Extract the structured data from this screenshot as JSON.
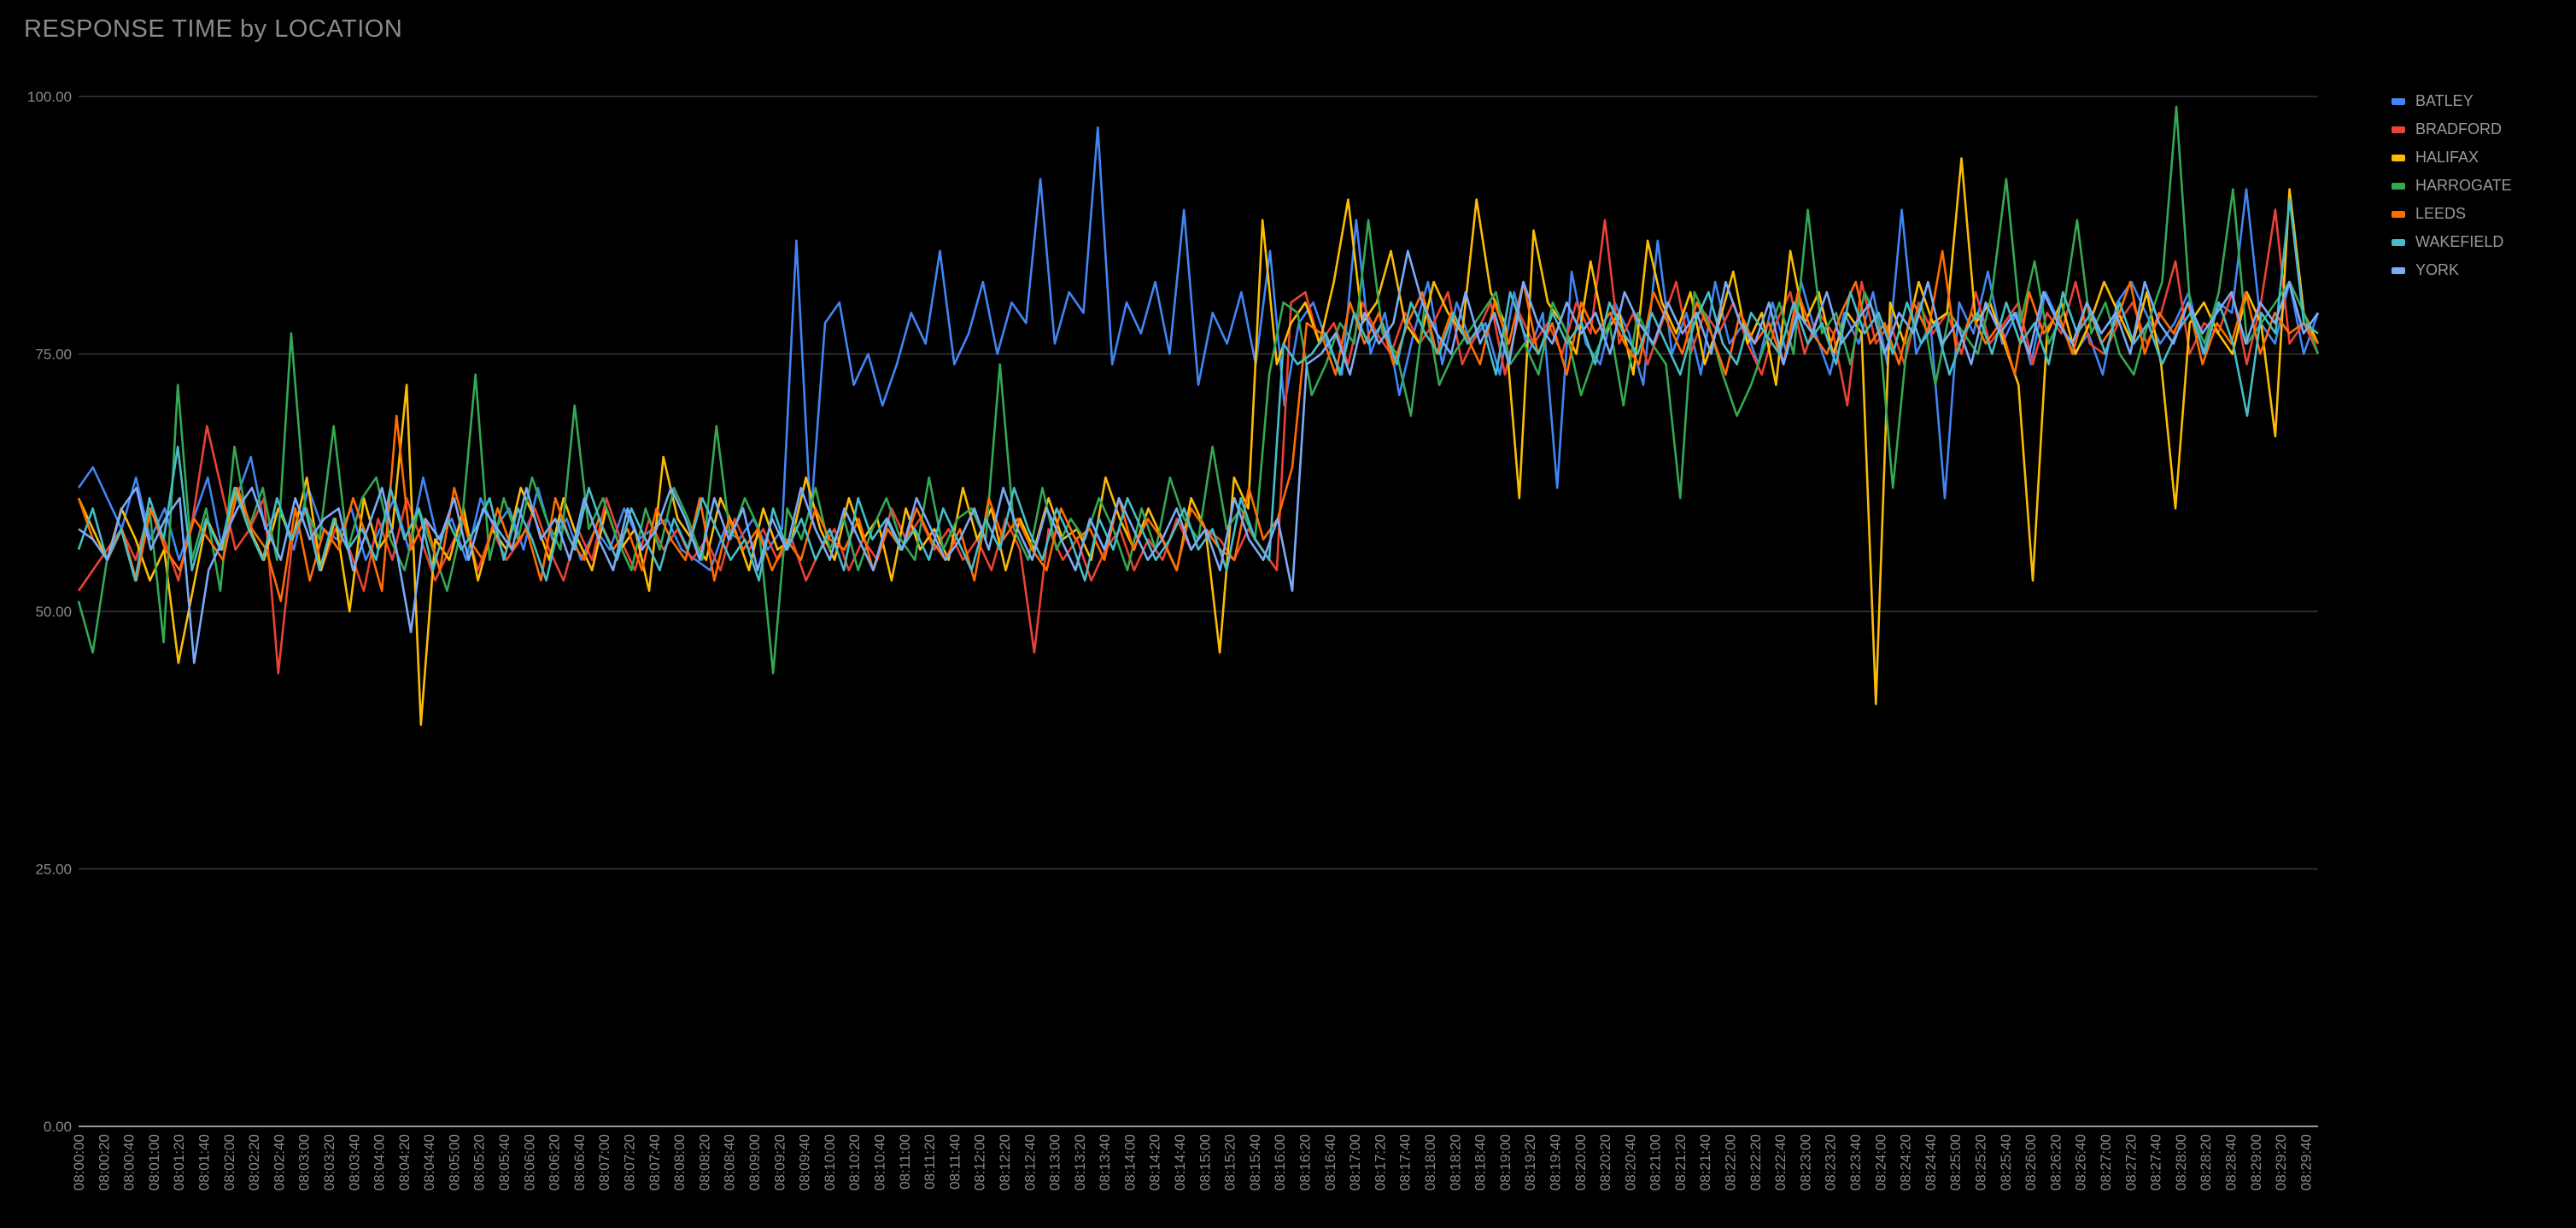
{
  "chart_data": {
    "type": "line",
    "title": "RESPONSE TIME by LOCATION",
    "xlabel": "",
    "ylabel": "",
    "ylim": [
      0,
      100
    ],
    "y_ticks": [
      "0.00",
      "25.00",
      "50.00",
      "75.00",
      "100.00"
    ],
    "x_tick_labels": [
      "08:00:00",
      "08:00:20",
      "08:00:40",
      "08:01:00",
      "08:01:20",
      "08:01:40",
      "08:02:00",
      "08:02:20",
      "08:02:40",
      "08:03:00",
      "08:03:20",
      "08:03:40",
      "08:04:00",
      "08:04:20",
      "08:04:40",
      "08:05:00",
      "08:05:20",
      "08:05:40",
      "08:06:00",
      "08:06:20",
      "08:06:40",
      "08:07:00",
      "08:07:20",
      "08:07:40",
      "08:08:00",
      "08:08:20",
      "08:08:40",
      "08:09:00",
      "08:09:20",
      "08:09:40",
      "08:10:00",
      "08:10:20",
      "08:10:40",
      "08:11:00",
      "08:11:20",
      "08:11:40",
      "08:12:00",
      "08:12:20",
      "08:12:40",
      "08:13:00",
      "08:13:20",
      "08:13:40",
      "08:14:00",
      "08:14:20",
      "08:14:40",
      "08:15:00",
      "08:15:20",
      "08:15:40",
      "08:16:00",
      "08:16:20",
      "08:16:40",
      "08:17:00",
      "08:17:20",
      "08:17:40",
      "08:18:00",
      "08:18:20",
      "08:18:40",
      "08:19:00",
      "08:19:20",
      "08:19:40",
      "08:20:00",
      "08:20:20",
      "08:20:40",
      "08:21:00",
      "08:21:20",
      "08:21:40",
      "08:22:00",
      "08:22:20",
      "08:22:40",
      "08:23:00",
      "08:23:20",
      "08:23:40",
      "08:24:00",
      "08:24:20",
      "08:24:40",
      "08:25:00",
      "08:25:20",
      "08:25:40",
      "08:26:00",
      "08:26:20",
      "08:26:40",
      "08:27:00",
      "08:27:20",
      "08:27:40",
      "08:28:00",
      "08:28:20",
      "08:28:40",
      "08:29:00",
      "08:29:20",
      "08:29:40"
    ],
    "grid": true,
    "legend_position": "right",
    "series": [
      {
        "name": "BATLEY",
        "color": "#4285f4",
        "values": [
          62,
          64,
          61,
          58,
          63,
          57,
          60,
          55,
          59,
          63,
          56,
          61,
          65,
          58,
          60,
          56,
          62,
          58,
          57,
          60,
          55,
          58,
          61,
          56,
          63,
          57,
          59,
          55,
          61,
          58,
          60,
          56,
          62,
          57,
          59,
          55,
          58,
          56,
          60,
          57,
          58,
          59,
          56,
          55,
          54,
          58,
          57,
          59,
          56,
          58,
          86,
          59,
          78,
          80,
          72,
          75,
          70,
          74,
          79,
          76,
          85,
          74,
          77,
          82,
          75,
          80,
          78,
          92,
          76,
          81,
          79,
          97,
          74,
          80,
          77,
          82,
          75,
          89,
          72,
          79,
          76,
          81,
          74,
          85,
          70,
          78,
          80,
          76,
          73,
          88,
          75,
          79,
          71,
          77,
          82,
          74,
          80,
          76,
          78,
          73,
          81,
          75,
          79,
          62,
          83,
          76,
          74,
          80,
          77,
          72,
          86,
          75,
          79,
          73,
          82,
          76,
          78,
          74,
          80,
          75,
          82,
          77,
          73,
          79,
          76,
          81,
          74,
          89,
          75,
          78,
          61,
          80,
          77,
          83,
          76,
          79,
          74,
          81,
          78,
          75,
          77,
          73,
          80,
          82,
          79,
          76,
          78,
          81,
          75,
          80,
          79,
          91,
          78,
          76,
          82,
          75,
          79
        ]
      },
      {
        "name": "BRADFORD",
        "color": "#ea4335",
        "values": [
          52,
          54,
          56,
          58,
          55,
          60,
          57,
          53,
          59,
          68,
          62,
          56,
          58,
          61,
          44,
          57,
          60,
          54,
          58,
          56,
          52,
          59,
          55,
          61,
          57,
          53,
          56,
          59,
          54,
          58,
          55,
          57,
          60,
          56,
          53,
          58,
          55,
          61,
          57,
          54,
          59,
          56,
          58,
          55,
          57,
          54,
          59,
          56,
          58,
          55,
          57,
          53,
          56,
          58,
          54,
          57,
          55,
          60,
          57,
          59,
          56,
          58,
          55,
          57,
          54,
          59,
          56,
          46,
          58,
          55,
          57,
          53,
          56,
          58,
          54,
          57,
          55,
          59,
          56,
          58,
          57,
          55,
          58,
          56,
          54,
          80,
          81,
          76,
          78,
          74,
          80,
          77,
          75,
          79,
          76,
          78,
          81,
          74,
          77,
          80,
          73,
          79,
          76,
          78,
          75,
          80,
          77,
          88,
          76,
          79,
          74,
          78,
          82,
          75,
          79,
          77,
          80,
          76,
          73,
          78,
          81,
          75,
          79,
          77,
          70,
          82,
          76,
          78,
          74,
          80,
          77,
          79,
          75,
          81,
          76,
          78,
          80,
          74,
          79,
          77,
          82,
          76,
          75,
          78,
          80,
          76,
          79,
          84,
          75,
          78,
          77,
          81,
          74,
          80,
          89,
          76,
          78,
          75
        ]
      },
      {
        "name": "HALIFAX",
        "color": "#fbbc04",
        "values": [
          61,
          58,
          55,
          60,
          57,
          53,
          56,
          45,
          52,
          59,
          56,
          62,
          58,
          55,
          60,
          57,
          63,
          54,
          59,
          50,
          61,
          56,
          58,
          72,
          39,
          57,
          55,
          60,
          53,
          58,
          56,
          62,
          59,
          55,
          61,
          57,
          54,
          60,
          56,
          58,
          52,
          65,
          59,
          57,
          55,
          61,
          58,
          54,
          60,
          56,
          57,
          63,
          58,
          55,
          61,
          57,
          59,
          53,
          60,
          56,
          58,
          55,
          62,
          57,
          60,
          54,
          59,
          56,
          61,
          57,
          58,
          55,
          63,
          59,
          56,
          60,
          57,
          54,
          61,
          58,
          46,
          63,
          60,
          88,
          74,
          78,
          80,
          76,
          82,
          90,
          78,
          80,
          85,
          78,
          76,
          82,
          79,
          77,
          90,
          81,
          78,
          61,
          87,
          80,
          78,
          75,
          84,
          77,
          79,
          73,
          86,
          80,
          77,
          81,
          74,
          78,
          83,
          76,
          79,
          72,
          85,
          78,
          81,
          75,
          79,
          77,
          41,
          80,
          76,
          82,
          78,
          79,
          94,
          78,
          80,
          76,
          72,
          53,
          77,
          80,
          75,
          78,
          82,
          79,
          76,
          81,
          74,
          60,
          78,
          80,
          77,
          75,
          81,
          78,
          67,
          91,
          79,
          76
        ]
      },
      {
        "name": "HARROGATE",
        "color": "#34a853",
        "values": [
          51,
          46,
          55,
          58,
          53,
          60,
          47,
          72,
          55,
          60,
          52,
          66,
          58,
          62,
          55,
          77,
          60,
          57,
          68,
          56,
          61,
          63,
          57,
          54,
          60,
          56,
          52,
          58,
          73,
          55,
          61,
          57,
          63,
          59,
          56,
          70,
          58,
          61,
          57,
          54,
          60,
          56,
          62,
          59,
          55,
          68,
          57,
          61,
          58,
          44,
          60,
          57,
          62,
          56,
          59,
          54,
          58,
          61,
          57,
          55,
          63,
          56,
          59,
          60,
          57,
          74,
          58,
          55,
          62,
          56,
          59,
          57,
          61,
          58,
          54,
          60,
          56,
          63,
          59,
          57,
          66,
          58,
          60,
          57,
          73,
          80,
          79,
          71,
          74,
          78,
          76,
          88,
          77,
          75,
          69,
          80,
          72,
          75,
          77,
          79,
          81,
          74,
          76,
          73,
          80,
          77,
          71,
          75,
          78,
          70,
          79,
          76,
          74,
          61,
          81,
          78,
          73,
          69,
          72,
          76,
          80,
          75,
          89,
          77,
          79,
          74,
          81,
          78,
          62,
          76,
          80,
          72,
          79,
          77,
          75,
          81,
          92,
          78,
          84,
          76,
          79,
          88,
          77,
          80,
          75,
          73,
          78,
          82,
          99,
          79,
          76,
          81,
          91,
          76,
          78,
          80,
          82,
          79,
          75
        ]
      },
      {
        "name": "LEEDS",
        "color": "#ff6d01",
        "values": [
          61,
          57,
          55,
          58,
          53,
          60,
          56,
          54,
          59,
          57,
          55,
          62,
          58,
          56,
          51,
          60,
          53,
          58,
          56,
          61,
          57,
          52,
          69,
          56,
          59,
          54,
          62,
          57,
          55,
          60,
          56,
          58,
          53,
          61,
          57,
          55,
          59,
          56,
          58,
          54,
          60,
          57,
          55,
          61,
          53,
          59,
          56,
          58,
          54,
          57,
          55,
          60,
          57,
          56,
          59,
          54,
          58,
          56,
          60,
          57,
          55,
          58,
          53,
          61,
          57,
          59,
          56,
          54,
          60,
          57,
          58,
          55,
          61,
          56,
          59,
          57,
          54,
          60,
          58,
          56,
          55,
          62,
          57,
          59,
          64,
          78,
          77,
          73,
          80,
          76,
          79,
          74,
          78,
          81,
          75,
          79,
          77,
          74,
          80,
          76,
          82,
          75,
          78,
          73,
          80,
          77,
          79,
          76,
          74,
          81,
          78,
          75,
          80,
          77,
          73,
          79,
          76,
          78,
          74,
          81,
          77,
          75,
          79,
          82,
          76,
          78,
          74,
          80,
          77,
          85,
          75,
          79,
          76,
          78,
          73,
          81,
          77,
          79,
          75,
          80,
          76,
          78,
          82,
          75,
          79,
          77,
          80,
          74,
          78,
          76,
          81,
          75,
          79,
          77,
          78,
          76
        ]
      },
      {
        "name": "WAKEFIELD",
        "color": "#46bdc6",
        "values": [
          56,
          60,
          55,
          58,
          53,
          61,
          57,
          66,
          54,
          59,
          56,
          62,
          58,
          55,
          61,
          57,
          60,
          54,
          59,
          56,
          58,
          55,
          62,
          57,
          60,
          54,
          59,
          56,
          58,
          61,
          55,
          60,
          57,
          53,
          59,
          56,
          62,
          58,
          55,
          60,
          57,
          54,
          59,
          56,
          61,
          58,
          55,
          57,
          53,
          60,
          56,
          59,
          55,
          58,
          54,
          61,
          57,
          59,
          56,
          58,
          55,
          60,
          57,
          54,
          59,
          56,
          62,
          58,
          55,
          60,
          57,
          53,
          59,
          56,
          61,
          58,
          55,
          57,
          60,
          56,
          58,
          54,
          61,
          57,
          55,
          76,
          74,
          75,
          77,
          73,
          79,
          76,
          78,
          74,
          80,
          77,
          75,
          79,
          76,
          78,
          73,
          81,
          77,
          75,
          79,
          76,
          78,
          74,
          80,
          77,
          75,
          79,
          76,
          73,
          78,
          81,
          76,
          74,
          79,
          77,
          75,
          80,
          76,
          78,
          74,
          81,
          77,
          79,
          75,
          80,
          76,
          78,
          73,
          77,
          79,
          75,
          80,
          76,
          78,
          74,
          81,
          77,
          79,
          75,
          80,
          76,
          78,
          74,
          77,
          79,
          75,
          80,
          76,
          69,
          79,
          77,
          90,
          78,
          77
        ]
      },
      {
        "name": "YORK",
        "color": "#7baaf7",
        "values": [
          58,
          57,
          55,
          60,
          62,
          56,
          59,
          61,
          45,
          54,
          57,
          60,
          62,
          58,
          55,
          61,
          57,
          59,
          60,
          54,
          58,
          62,
          56,
          48,
          59,
          57,
          61,
          55,
          60,
          58,
          56,
          62,
          57,
          59,
          55,
          61,
          57,
          54,
          60,
          56,
          58,
          62,
          59,
          55,
          61,
          57,
          60,
          54,
          59,
          56,
          62,
          58,
          55,
          60,
          57,
          54,
          59,
          56,
          61,
          58,
          55,
          57,
          60,
          56,
          62,
          58,
          55,
          60,
          57,
          54,
          59,
          56,
          61,
          58,
          55,
          57,
          60,
          56,
          58,
          54,
          61,
          57,
          55,
          59,
          52,
          74,
          75,
          77,
          73,
          79,
          76,
          78,
          85,
          80,
          77,
          75,
          81,
          76,
          79,
          74,
          82,
          78,
          76,
          80,
          77,
          79,
          75,
          81,
          78,
          76,
          80,
          77,
          79,
          75,
          82,
          78,
          76,
          80,
          74,
          79,
          77,
          81,
          76,
          78,
          80,
          75,
          79,
          77,
          82,
          76,
          78,
          74,
          80,
          77,
          79,
          75,
          81,
          78,
          76,
          80,
          77,
          79,
          75,
          82,
          78,
          76,
          80,
          77,
          79,
          81,
          76,
          80,
          78,
          82,
          77,
          79
        ]
      }
    ]
  }
}
